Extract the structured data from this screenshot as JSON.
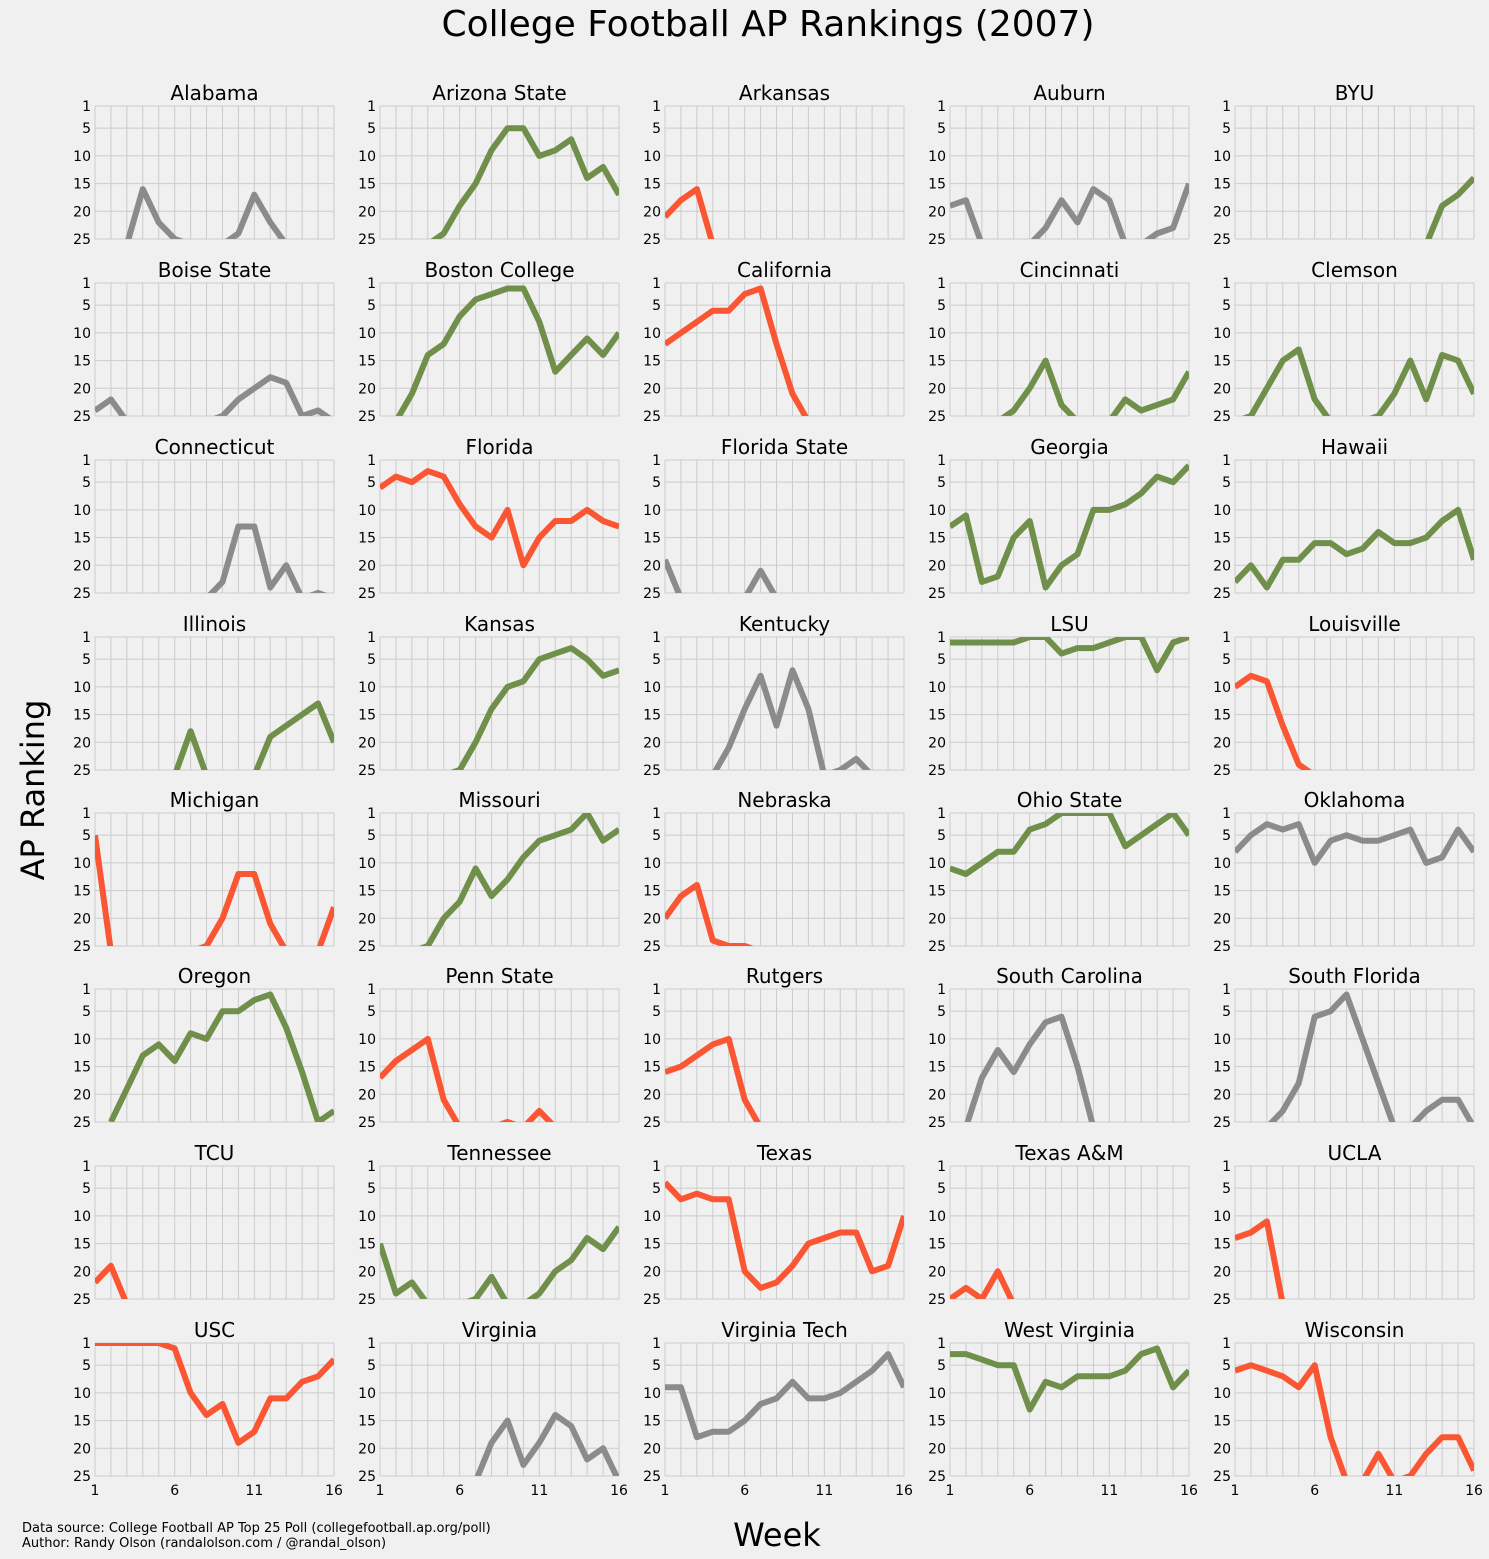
{
  "chart_data": {
    "type": "line",
    "title": "College Football AP Rankings (2007)",
    "xlabel": "Week",
    "ylabel": "AP Ranking",
    "x": [
      1,
      2,
      3,
      4,
      5,
      6,
      7,
      8,
      9,
      10,
      11,
      12,
      13,
      14,
      15,
      16
    ],
    "xticks": [
      1,
      6,
      11,
      16
    ],
    "yticks": [
      1,
      5,
      10,
      15,
      20,
      25
    ],
    "ylim": [
      25,
      1
    ],
    "grid": true,
    "colors": {
      "improved": "#6f8f4a",
      "declined": "#fb5633",
      "neutral": "#8b8b8b",
      "grid": "#cbcbcb",
      "background": "#f0f0f0"
    },
    "footnote": [
      "Data source: College Football AP Top 25 Poll (collegefootball.ap.org/poll)",
      "Author: Randy Olson (randalolson.com / @randal_olson)"
    ],
    "teams": [
      {
        "name": "Alabama",
        "trend": "neutral",
        "ranks": [
          null,
          null,
          26,
          16,
          22,
          25,
          26,
          26,
          26,
          24,
          17,
          22,
          26,
          null,
          null,
          null
        ]
      },
      {
        "name": "Arizona State",
        "trend": "improved",
        "ranks": [
          null,
          null,
          null,
          26,
          24,
          19,
          15,
          9,
          5,
          5,
          10,
          9,
          7,
          14,
          12,
          17
        ]
      },
      {
        "name": "Arkansas",
        "trend": "declined",
        "ranks": [
          21,
          18,
          16,
          26,
          null,
          null,
          null,
          null,
          null,
          null,
          null,
          null,
          null,
          null,
          null,
          null
        ]
      },
      {
        "name": "Auburn",
        "trend": "neutral",
        "ranks": [
          19,
          18,
          26,
          null,
          null,
          26,
          23,
          18,
          22,
          16,
          18,
          26,
          26,
          24,
          23,
          15
        ]
      },
      {
        "name": "BYU",
        "trend": "improved",
        "ranks": [
          null,
          null,
          null,
          null,
          null,
          null,
          null,
          null,
          null,
          null,
          null,
          null,
          26,
          19,
          17,
          14
        ]
      },
      {
        "name": "Boise State",
        "trend": "neutral",
        "ranks": [
          24,
          22,
          26,
          null,
          null,
          null,
          null,
          26,
          25,
          22,
          20,
          18,
          19,
          25,
          24,
          26
        ]
      },
      {
        "name": "Boston College",
        "trend": "improved",
        "ranks": [
          null,
          26,
          21,
          14,
          12,
          7,
          4,
          3,
          2,
          2,
          8,
          17,
          14,
          11,
          14,
          10
        ]
      },
      {
        "name": "California",
        "trend": "declined",
        "ranks": [
          12,
          10,
          8,
          6,
          6,
          3,
          2,
          12,
          21,
          26,
          null,
          null,
          null,
          null,
          null,
          null
        ]
      },
      {
        "name": "Cincinnati",
        "trend": "improved",
        "ranks": [
          null,
          null,
          null,
          26,
          24,
          20,
          15,
          23,
          26,
          26,
          26,
          22,
          24,
          23,
          22,
          17
        ]
      },
      {
        "name": "Clemson",
        "trend": "improved",
        "ranks": [
          26,
          25,
          20,
          15,
          13,
          22,
          26,
          26,
          26,
          25,
          21,
          15,
          22,
          14,
          15,
          21
        ]
      },
      {
        "name": "Connecticut",
        "trend": "neutral",
        "ranks": [
          null,
          null,
          null,
          null,
          null,
          null,
          null,
          26,
          23,
          13,
          13,
          24,
          20,
          26,
          25,
          26
        ]
      },
      {
        "name": "Florida",
        "trend": "declined",
        "ranks": [
          6,
          4,
          5,
          3,
          4,
          9,
          13,
          15,
          10,
          20,
          15,
          12,
          12,
          10,
          12,
          13
        ]
      },
      {
        "name": "Florida State",
        "trend": "neutral",
        "ranks": [
          19,
          26,
          null,
          null,
          null,
          26,
          21,
          26,
          null,
          null,
          null,
          null,
          null,
          null,
          null,
          null
        ]
      },
      {
        "name": "Georgia",
        "trend": "improved",
        "ranks": [
          13,
          11,
          23,
          22,
          15,
          12,
          24,
          20,
          18,
          10,
          10,
          9,
          7,
          4,
          5,
          2
        ]
      },
      {
        "name": "Hawaii",
        "trend": "improved",
        "ranks": [
          23,
          20,
          24,
          19,
          19,
          16,
          16,
          18,
          17,
          14,
          16,
          16,
          15,
          12,
          10,
          19
        ]
      },
      {
        "name": "Illinois",
        "trend": "improved",
        "ranks": [
          null,
          null,
          null,
          null,
          26,
          26,
          18,
          26,
          null,
          null,
          26,
          19,
          17,
          15,
          13,
          20
        ]
      },
      {
        "name": "Kansas",
        "trend": "improved",
        "ranks": [
          null,
          null,
          null,
          null,
          26,
          25,
          20,
          14,
          10,
          9,
          5,
          4,
          3,
          5,
          8,
          7
        ]
      },
      {
        "name": "Kentucky",
        "trend": "neutral",
        "ranks": [
          null,
          null,
          null,
          26,
          21,
          14,
          8,
          17,
          7,
          14,
          26,
          25,
          23,
          26,
          null,
          null
        ]
      },
      {
        "name": "LSU",
        "trend": "improved",
        "ranks": [
          2,
          2,
          2,
          2,
          2,
          1,
          1,
          4,
          3,
          3,
          2,
          1,
          1,
          7,
          2,
          1
        ]
      },
      {
        "name": "Louisville",
        "trend": "declined",
        "ranks": [
          10,
          8,
          9,
          17,
          24,
          26,
          null,
          null,
          null,
          null,
          null,
          null,
          null,
          null,
          null,
          null
        ]
      },
      {
        "name": "Michigan",
        "trend": "declined",
        "ranks": [
          5,
          26,
          null,
          null,
          null,
          null,
          26,
          25,
          20,
          12,
          12,
          21,
          26,
          null,
          26,
          18
        ]
      },
      {
        "name": "Missouri",
        "trend": "improved",
        "ranks": [
          null,
          null,
          26,
          25,
          20,
          17,
          11,
          16,
          13,
          9,
          6,
          5,
          4,
          1,
          6,
          4
        ]
      },
      {
        "name": "Nebraska",
        "trend": "declined",
        "ranks": [
          20,
          16,
          14,
          24,
          25,
          25,
          26,
          null,
          null,
          null,
          null,
          null,
          null,
          null,
          null,
          null
        ]
      },
      {
        "name": "Ohio State",
        "trend": "improved",
        "ranks": [
          11,
          12,
          10,
          8,
          8,
          4,
          3,
          1,
          1,
          1,
          1,
          7,
          5,
          3,
          1,
          5
        ]
      },
      {
        "name": "Oklahoma",
        "trend": "neutral",
        "ranks": [
          8,
          5,
          3,
          4,
          3,
          10,
          6,
          5,
          6,
          6,
          5,
          4,
          10,
          9,
          4,
          8
        ]
      },
      {
        "name": "Oregon",
        "trend": "improved",
        "ranks": [
          null,
          25,
          19,
          13,
          11,
          14,
          9,
          10,
          5,
          5,
          3,
          2,
          8,
          16,
          25,
          23
        ]
      },
      {
        "name": "Penn State",
        "trend": "declined",
        "ranks": [
          17,
          14,
          12,
          10,
          21,
          26,
          26,
          26,
          25,
          26,
          23,
          26,
          null,
          null,
          null,
          null
        ]
      },
      {
        "name": "Rutgers",
        "trend": "declined",
        "ranks": [
          16,
          15,
          13,
          11,
          10,
          21,
          26,
          null,
          null,
          null,
          null,
          null,
          null,
          null,
          null,
          null
        ]
      },
      {
        "name": "South Carolina",
        "trend": "neutral",
        "ranks": [
          null,
          26,
          17,
          12,
          16,
          11,
          7,
          6,
          15,
          26,
          null,
          null,
          null,
          null,
          null,
          null
        ]
      },
      {
        "name": "South Florida",
        "trend": "neutral",
        "ranks": [
          null,
          null,
          26,
          23,
          18,
          6,
          5,
          2,
          10,
          18,
          26,
          26,
          23,
          21,
          21,
          26
        ]
      },
      {
        "name": "TCU",
        "trend": "declined",
        "ranks": [
          22,
          19,
          26,
          null,
          null,
          null,
          null,
          null,
          null,
          null,
          null,
          null,
          null,
          null,
          null,
          null
        ]
      },
      {
        "name": "Tennessee",
        "trend": "improved",
        "ranks": [
          15,
          24,
          22,
          26,
          26,
          26,
          25,
          21,
          26,
          26,
          24,
          20,
          18,
          14,
          16,
          12
        ]
      },
      {
        "name": "Texas",
        "trend": "declined",
        "ranks": [
          4,
          7,
          6,
          7,
          7,
          20,
          23,
          22,
          19,
          15,
          14,
          13,
          13,
          20,
          19,
          10
        ]
      },
      {
        "name": "Texas A&M",
        "trend": "declined",
        "ranks": [
          25,
          23,
          25,
          20,
          26,
          null,
          null,
          null,
          null,
          null,
          null,
          null,
          null,
          null,
          null,
          null
        ]
      },
      {
        "name": "UCLA",
        "trend": "declined",
        "ranks": [
          14,
          13,
          11,
          26,
          null,
          null,
          null,
          null,
          null,
          null,
          null,
          null,
          null,
          null,
          null,
          null
        ]
      },
      {
        "name": "USC",
        "trend": "declined",
        "ranks": [
          1,
          1,
          1,
          1,
          1,
          2,
          10,
          14,
          12,
          19,
          17,
          11,
          11,
          8,
          7,
          4
        ]
      },
      {
        "name": "Virginia",
        "trend": "neutral",
        "ranks": [
          null,
          null,
          null,
          null,
          null,
          null,
          26,
          19,
          15,
          23,
          19,
          14,
          16,
          22,
          20,
          26
        ]
      },
      {
        "name": "Virginia Tech",
        "trend": "neutral",
        "ranks": [
          9,
          9,
          18,
          17,
          17,
          15,
          12,
          11,
          8,
          11,
          11,
          10,
          8,
          6,
          3,
          9
        ]
      },
      {
        "name": "West Virginia",
        "trend": "improved",
        "ranks": [
          3,
          3,
          4,
          5,
          5,
          13,
          8,
          9,
          7,
          7,
          7,
          6,
          3,
          2,
          9,
          6
        ]
      },
      {
        "name": "Wisconsin",
        "trend": "declined",
        "ranks": [
          6,
          5,
          6,
          7,
          9,
          5,
          18,
          26,
          26,
          21,
          26,
          25,
          21,
          18,
          18,
          24
        ]
      }
    ]
  }
}
